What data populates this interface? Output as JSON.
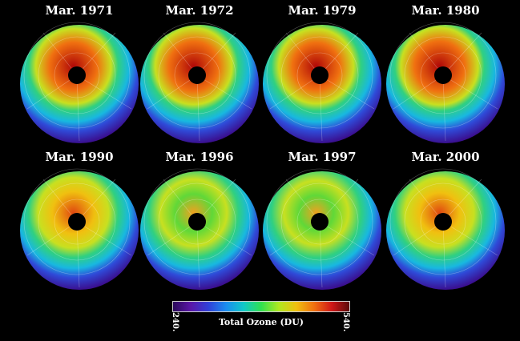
{
  "panels": [
    {
      "title": "Mar. 1971",
      "level": 0.72
    },
    {
      "title": "Mar. 1972",
      "level": 0.78
    },
    {
      "title": "Mar. 1979",
      "level": 0.7
    },
    {
      "title": "Mar. 1980",
      "level": 0.8
    },
    {
      "title": "Mar. 1990",
      "level": 0.52
    },
    {
      "title": "Mar. 1996",
      "level": 0.35
    },
    {
      "title": "Mar. 1997",
      "level": 0.25
    },
    {
      "title": "Mar. 2000",
      "level": 0.45
    }
  ],
  "legend": {
    "label": "Total Ozone (DU)",
    "min": "240.",
    "max": "540.",
    "colors": [
      "#2b0a5a",
      "#5a16a8",
      "#3040d8",
      "#1a8cf0",
      "#10c8c8",
      "#30e050",
      "#b0e820",
      "#f0c010",
      "#f07010",
      "#d01818",
      "#5a0a0a"
    ]
  }
}
